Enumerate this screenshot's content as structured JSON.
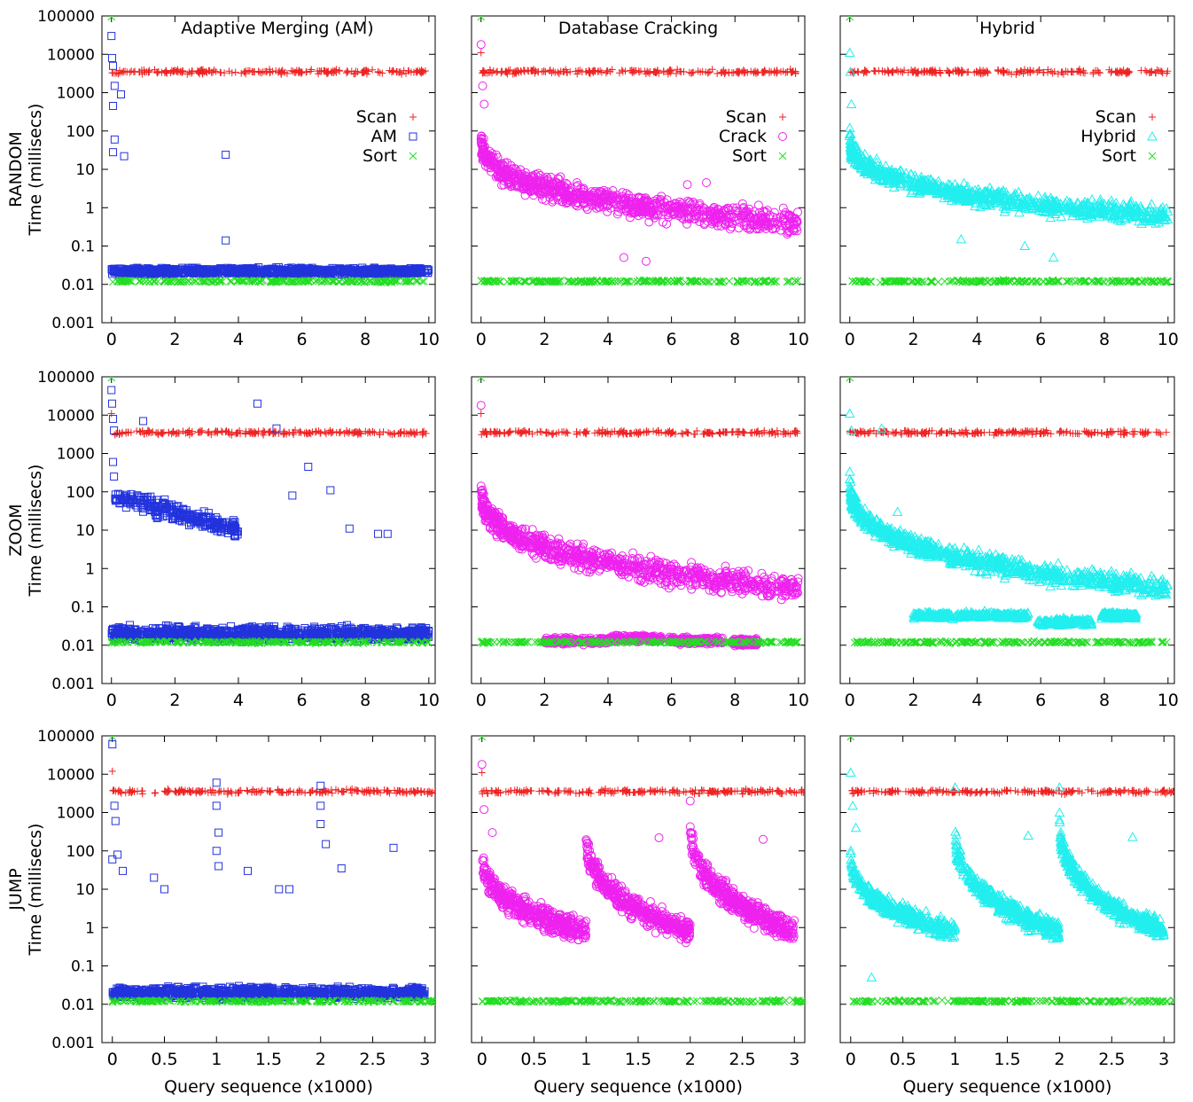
{
  "figure": {
    "x_axis_label": "Query sequence (x1000)",
    "column_titles": [
      "Adaptive Merging (AM)",
      "Database Cracking",
      "Hybrid"
    ],
    "row_labels": [
      {
        "workload": "RANDOM",
        "unit": "Time (millisecs)"
      },
      {
        "workload": "ZOOM",
        "unit": "Time (millisecs)"
      },
      {
        "workload": "JUMP",
        "unit": "Time (millisecs)"
      }
    ],
    "y_ticks": [
      "0.001",
      "0.01",
      "0.1",
      "1",
      "10",
      "100",
      "1000",
      "10000",
      "100000"
    ],
    "x_ticks_10": [
      "0",
      "2",
      "4",
      "6",
      "8",
      "10"
    ],
    "x_ticks_3": [
      "0",
      "0.5",
      "1",
      "1.5",
      "2",
      "2.5",
      "3"
    ],
    "legends": [
      [
        {
          "label": "Scan",
          "key": "scan"
        },
        {
          "label": "AM",
          "key": "am"
        },
        {
          "label": "Sort",
          "key": "sort"
        }
      ],
      [
        {
          "label": "Scan",
          "key": "scan"
        },
        {
          "label": "Crack",
          "key": "crack"
        },
        {
          "label": "Sort",
          "key": "sort"
        }
      ],
      [
        {
          "label": "Scan",
          "key": "scan"
        },
        {
          "label": "Hybrid",
          "key": "hybrid"
        },
        {
          "label": "Sort",
          "key": "sort"
        }
      ]
    ]
  },
  "chart_data": [
    {
      "type": "scatter",
      "row": "RANDOM",
      "panel": "Adaptive Merging (AM)",
      "xlim": [
        -0.3,
        10.2
      ],
      "ylim": [
        0.001,
        100000
      ],
      "y_scale": "log",
      "grid": false,
      "legend": "right",
      "series": [
        {
          "name": "Scan",
          "key": "scan",
          "x_range": [
            0,
            10
          ],
          "y_level": 3500,
          "first": [],
          "spread": 0.08
        },
        {
          "name": "AM",
          "key": "am",
          "x_range": [
            0,
            10
          ],
          "y_level": 0.022,
          "first": [
            [
              0,
              30000
            ],
            [
              0.02,
              8000
            ],
            [
              0.05,
              5000
            ],
            [
              0.1,
              1500
            ],
            [
              0.05,
              450
            ],
            [
              0.1,
              60
            ],
            [
              0.05,
              28
            ],
            [
              0.3,
              900
            ],
            [
              0.4,
              22
            ],
            [
              3.6,
              24
            ],
            [
              3.6,
              0.14
            ]
          ],
          "spread": 0.12
        },
        {
          "name": "Sort",
          "key": "sort",
          "x_range": [
            0,
            10
          ],
          "y_level": 0.012,
          "first": [
            [
              0,
              95000
            ]
          ],
          "spread": 0.04
        }
      ]
    },
    {
      "type": "scatter",
      "row": "RANDOM",
      "panel": "Database Cracking",
      "xlim": [
        -0.3,
        10.2
      ],
      "ylim": [
        0.001,
        100000
      ],
      "y_scale": "log",
      "grid": false,
      "legend": "right",
      "series": [
        {
          "name": "Scan",
          "key": "scan",
          "x_range": [
            0,
            10
          ],
          "y_level": 3500,
          "first": [
            [
              0,
              11000
            ]
          ],
          "spread": 0.08
        },
        {
          "name": "Crack",
          "key": "crack",
          "x_range": [
            0,
            10
          ],
          "y_start": 100,
          "y_end": 0.4,
          "first": [
            [
              0,
              18000
            ],
            [
              0.05,
              1500
            ],
            [
              0.1,
              500
            ],
            [
              4.5,
              0.05
            ],
            [
              5.2,
              0.04
            ],
            [
              6.5,
              4
            ],
            [
              7.1,
              4.5
            ]
          ],
          "spread": 0.45
        },
        {
          "name": "Sort",
          "key": "sort",
          "x_range": [
            0,
            10
          ],
          "y_level": 0.012,
          "first": [
            [
              0,
              95000
            ]
          ],
          "spread": 0.04
        }
      ]
    },
    {
      "type": "scatter",
      "row": "RANDOM",
      "panel": "Hybrid",
      "xlim": [
        -0.3,
        10.2
      ],
      "ylim": [
        0.001,
        100000
      ],
      "y_scale": "log",
      "grid": false,
      "legend": "right",
      "series": [
        {
          "name": "Scan",
          "key": "scan",
          "x_range": [
            0,
            10
          ],
          "y_level": 3500,
          "first": [],
          "spread": 0.08
        },
        {
          "name": "Hybrid",
          "key": "hybrid",
          "x_range": [
            0,
            10
          ],
          "y_start": 100,
          "y_end": 0.6,
          "first": [
            [
              0,
              11000
            ],
            [
              0.02,
              3500
            ],
            [
              0.05,
              500
            ],
            [
              5.5,
              0.1
            ],
            [
              6.4,
              0.05
            ],
            [
              3.5,
              0.15
            ]
          ],
          "spread": 0.35
        },
        {
          "name": "Sort",
          "key": "sort",
          "x_range": [
            0,
            10
          ],
          "y_level": 0.012,
          "first": [
            [
              0,
              95000
            ]
          ],
          "spread": 0.04
        }
      ]
    },
    {
      "type": "scatter",
      "row": "ZOOM",
      "panel": "Adaptive Merging (AM)",
      "xlim": [
        -0.3,
        10.2
      ],
      "ylim": [
        0.001,
        100000
      ],
      "y_scale": "log",
      "grid": false,
      "series": [
        {
          "name": "Scan",
          "key": "scan",
          "x_range": [
            0,
            10
          ],
          "y_level": 3500,
          "first": [
            [
              0,
              11000
            ]
          ],
          "spread": 0.08
        },
        {
          "name": "AM",
          "key": "am",
          "x_range": [
            0,
            10
          ],
          "y_level": 0.02,
          "first": [
            [
              0,
              45000
            ],
            [
              0.02,
              20000
            ],
            [
              0.05,
              8000
            ],
            [
              0.08,
              4000
            ],
            [
              0.05,
              600
            ],
            [
              0.08,
              250
            ],
            [
              1,
              7000
            ],
            [
              4.6,
              20000
            ],
            [
              5.2,
              4500
            ],
            [
              6.2,
              450
            ],
            [
              6.9,
              110
            ],
            [
              5.7,
              80
            ],
            [
              7.5,
              11
            ],
            [
              8.4,
              8
            ],
            [
              8.7,
              8
            ]
          ],
          "spread": 0.25,
          "cluster": {
            "x_range": [
              0.1,
              4
            ],
            "y_start": 80,
            "y_end": 10
          }
        },
        {
          "name": "Sort",
          "key": "sort",
          "x_range": [
            0,
            10
          ],
          "y_level": 0.012,
          "first": [
            [
              0,
              95000
            ]
          ],
          "spread": 0.04
        }
      ]
    },
    {
      "type": "scatter",
      "row": "ZOOM",
      "panel": "Database Cracking",
      "xlim": [
        -0.3,
        10.2
      ],
      "ylim": [
        0.001,
        100000
      ],
      "y_scale": "log",
      "grid": false,
      "series": [
        {
          "name": "Scan",
          "key": "scan",
          "x_range": [
            0,
            10
          ],
          "y_level": 3500,
          "first": [
            [
              0,
              11000
            ]
          ],
          "spread": 0.08
        },
        {
          "name": "Crack",
          "key": "crack",
          "x_range": [
            0,
            10
          ],
          "y_start": 200,
          "y_end": 0.3,
          "first": [
            [
              0,
              18000
            ]
          ],
          "spread": 0.45,
          "bands": [
            [
              2,
              4,
              0.013
            ],
            [
              4,
              5.7,
              0.015
            ],
            [
              5.9,
              7.6,
              0.013
            ],
            [
              7.9,
              8.7,
              0.012
            ]
          ]
        },
        {
          "name": "Sort",
          "key": "sort",
          "x_range": [
            0,
            10
          ],
          "y_level": 0.012,
          "first": [
            [
              0,
              95000
            ]
          ],
          "spread": 0.04
        }
      ]
    },
    {
      "type": "scatter",
      "row": "ZOOM",
      "panel": "Hybrid",
      "xlim": [
        -0.3,
        10.2
      ],
      "ylim": [
        0.001,
        100000
      ],
      "y_scale": "log",
      "grid": false,
      "series": [
        {
          "name": "Scan",
          "key": "scan",
          "x_range": [
            0,
            10
          ],
          "y_level": 3500,
          "first": [],
          "spread": 0.08
        },
        {
          "name": "Hybrid",
          "key": "hybrid",
          "x_range": [
            0,
            10
          ],
          "y_start": 300,
          "y_end": 0.3,
          "first": [
            [
              0,
              11000
            ],
            [
              0.05,
              4000
            ],
            [
              1,
              4500
            ],
            [
              1.5,
              30
            ]
          ],
          "spread": 0.35,
          "bands": [
            [
              2,
              4,
              0.06
            ],
            [
              4,
              5.6,
              0.06
            ],
            [
              5.9,
              7.6,
              0.04
            ],
            [
              7.9,
              9,
              0.06
            ]
          ]
        },
        {
          "name": "Sort",
          "key": "sort",
          "x_range": [
            0,
            10
          ],
          "y_level": 0.012,
          "first": [
            [
              0,
              95000
            ]
          ],
          "spread": 0.04
        }
      ]
    },
    {
      "type": "scatter",
      "row": "JUMP",
      "panel": "Adaptive Merging (AM)",
      "xlim": [
        -0.1,
        3.1
      ],
      "ylim": [
        0.001,
        100000
      ],
      "y_scale": "log",
      "grid": false,
      "series": [
        {
          "name": "Scan",
          "key": "scan",
          "x_range": [
            0,
            3.1
          ],
          "y_level": 3500,
          "first": [
            [
              0,
              12000
            ]
          ],
          "spread": 0.08
        },
        {
          "name": "AM",
          "key": "am",
          "x_range": [
            0,
            3
          ],
          "y_level": 0.02,
          "first": [
            [
              0,
              60000
            ],
            [
              0.02,
              1500
            ],
            [
              0.03,
              600
            ],
            [
              0,
              60
            ],
            [
              0.05,
              80
            ],
            [
              0.1,
              30
            ],
            [
              0.4,
              20
            ],
            [
              0.5,
              10
            ],
            [
              1,
              6000
            ],
            [
              1,
              1500
            ],
            [
              1.02,
              300
            ],
            [
              1,
              100
            ],
            [
              1.02,
              40
            ],
            [
              1.3,
              30
            ],
            [
              1.6,
              10
            ],
            [
              1.7,
              10
            ],
            [
              2,
              5000
            ],
            [
              2,
              1500
            ],
            [
              2,
              500
            ],
            [
              2.05,
              150
            ],
            [
              2.2,
              35
            ],
            [
              2.7,
              120
            ]
          ],
          "spread": 0.2
        },
        {
          "name": "Sort",
          "key": "sort",
          "x_range": [
            0,
            3.1
          ],
          "y_level": 0.012,
          "first": [
            [
              0,
              95000
            ]
          ],
          "spread": 0.04
        }
      ]
    },
    {
      "type": "scatter",
      "row": "JUMP",
      "panel": "Database Cracking",
      "xlim": [
        -0.1,
        3.1
      ],
      "ylim": [
        0.001,
        100000
      ],
      "y_scale": "log",
      "grid": false,
      "series": [
        {
          "name": "Scan",
          "key": "scan",
          "x_range": [
            0,
            3.1
          ],
          "y_level": 3500,
          "first": [
            [
              0,
              11000
            ]
          ],
          "spread": 0.08
        },
        {
          "name": "Crack",
          "key": "crack",
          "segments": [
            [
              0,
              1,
              100,
              0.8
            ],
            [
              1,
              2,
              400,
              0.8
            ],
            [
              2,
              3,
              800,
              0.8
            ]
          ],
          "first": [
            [
              0,
              18000
            ],
            [
              0.02,
              1200
            ],
            [
              0.1,
              300
            ],
            [
              1.7,
              220
            ],
            [
              2.7,
              200
            ],
            [
              2,
              2000
            ]
          ],
          "spread": 0.45
        },
        {
          "name": "Sort",
          "key": "sort",
          "x_range": [
            0,
            3.1
          ],
          "y_level": 0.012,
          "first": [
            [
              0,
              95000
            ]
          ],
          "spread": 0.04
        }
      ]
    },
    {
      "type": "scatter",
      "row": "JUMP",
      "panel": "Hybrid",
      "xlim": [
        -0.1,
        3.1
      ],
      "ylim": [
        0.001,
        100000
      ],
      "y_scale": "log",
      "grid": false,
      "series": [
        {
          "name": "Scan",
          "key": "scan",
          "x_range": [
            0,
            3.1
          ],
          "y_level": 3500,
          "first": [],
          "spread": 0.08
        },
        {
          "name": "Hybrid",
          "key": "hybrid",
          "segments": [
            [
              0,
              1,
              100,
              0.8
            ],
            [
              1,
              2,
              500,
              0.8
            ],
            [
              2,
              3,
              1000,
              0.8
            ]
          ],
          "first": [
            [
              0,
              11000
            ],
            [
              0.02,
              1500
            ],
            [
              0.05,
              400
            ],
            [
              1,
              4500
            ],
            [
              2,
              4500
            ],
            [
              1.7,
              250
            ],
            [
              2.7,
              230
            ],
            [
              0.2,
              0.05
            ]
          ],
          "spread": 0.35
        },
        {
          "name": "Sort",
          "key": "sort",
          "x_range": [
            0,
            3.1
          ],
          "y_level": 0.012,
          "first": [
            [
              0,
              95000
            ]
          ],
          "spread": 0.04
        }
      ]
    }
  ],
  "colors": {
    "scan": "#ee2222",
    "am": "#2233dd",
    "crack": "#ee22ee",
    "hybrid": "#22eeee",
    "sort": "#22dd22"
  }
}
